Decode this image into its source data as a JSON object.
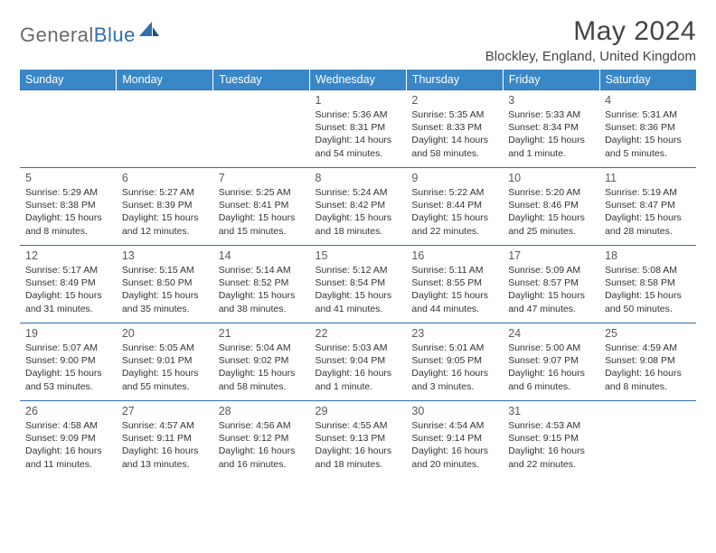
{
  "brand": {
    "part1": "General",
    "part2": "Blue"
  },
  "title": "May 2024",
  "location": "Blockley, England, United Kingdom",
  "colors": {
    "header_bg": "#3a87c8",
    "border": "#2f6fae",
    "text": "#333333",
    "title": "#444444"
  },
  "day_headers": [
    "Sunday",
    "Monday",
    "Tuesday",
    "Wednesday",
    "Thursday",
    "Friday",
    "Saturday"
  ],
  "weeks": [
    [
      null,
      null,
      null,
      {
        "n": "1",
        "sr": "Sunrise: 5:36 AM",
        "ss": "Sunset: 8:31 PM",
        "dl": "Daylight: 14 hours and 54 minutes."
      },
      {
        "n": "2",
        "sr": "Sunrise: 5:35 AM",
        "ss": "Sunset: 8:33 PM",
        "dl": "Daylight: 14 hours and 58 minutes."
      },
      {
        "n": "3",
        "sr": "Sunrise: 5:33 AM",
        "ss": "Sunset: 8:34 PM",
        "dl": "Daylight: 15 hours and 1 minute."
      },
      {
        "n": "4",
        "sr": "Sunrise: 5:31 AM",
        "ss": "Sunset: 8:36 PM",
        "dl": "Daylight: 15 hours and 5 minutes."
      }
    ],
    [
      {
        "n": "5",
        "sr": "Sunrise: 5:29 AM",
        "ss": "Sunset: 8:38 PM",
        "dl": "Daylight: 15 hours and 8 minutes."
      },
      {
        "n": "6",
        "sr": "Sunrise: 5:27 AM",
        "ss": "Sunset: 8:39 PM",
        "dl": "Daylight: 15 hours and 12 minutes."
      },
      {
        "n": "7",
        "sr": "Sunrise: 5:25 AM",
        "ss": "Sunset: 8:41 PM",
        "dl": "Daylight: 15 hours and 15 minutes."
      },
      {
        "n": "8",
        "sr": "Sunrise: 5:24 AM",
        "ss": "Sunset: 8:42 PM",
        "dl": "Daylight: 15 hours and 18 minutes."
      },
      {
        "n": "9",
        "sr": "Sunrise: 5:22 AM",
        "ss": "Sunset: 8:44 PM",
        "dl": "Daylight: 15 hours and 22 minutes."
      },
      {
        "n": "10",
        "sr": "Sunrise: 5:20 AM",
        "ss": "Sunset: 8:46 PM",
        "dl": "Daylight: 15 hours and 25 minutes."
      },
      {
        "n": "11",
        "sr": "Sunrise: 5:19 AM",
        "ss": "Sunset: 8:47 PM",
        "dl": "Daylight: 15 hours and 28 minutes."
      }
    ],
    [
      {
        "n": "12",
        "sr": "Sunrise: 5:17 AM",
        "ss": "Sunset: 8:49 PM",
        "dl": "Daylight: 15 hours and 31 minutes."
      },
      {
        "n": "13",
        "sr": "Sunrise: 5:15 AM",
        "ss": "Sunset: 8:50 PM",
        "dl": "Daylight: 15 hours and 35 minutes."
      },
      {
        "n": "14",
        "sr": "Sunrise: 5:14 AM",
        "ss": "Sunset: 8:52 PM",
        "dl": "Daylight: 15 hours and 38 minutes."
      },
      {
        "n": "15",
        "sr": "Sunrise: 5:12 AM",
        "ss": "Sunset: 8:54 PM",
        "dl": "Daylight: 15 hours and 41 minutes."
      },
      {
        "n": "16",
        "sr": "Sunrise: 5:11 AM",
        "ss": "Sunset: 8:55 PM",
        "dl": "Daylight: 15 hours and 44 minutes."
      },
      {
        "n": "17",
        "sr": "Sunrise: 5:09 AM",
        "ss": "Sunset: 8:57 PM",
        "dl": "Daylight: 15 hours and 47 minutes."
      },
      {
        "n": "18",
        "sr": "Sunrise: 5:08 AM",
        "ss": "Sunset: 8:58 PM",
        "dl": "Daylight: 15 hours and 50 minutes."
      }
    ],
    [
      {
        "n": "19",
        "sr": "Sunrise: 5:07 AM",
        "ss": "Sunset: 9:00 PM",
        "dl": "Daylight: 15 hours and 53 minutes."
      },
      {
        "n": "20",
        "sr": "Sunrise: 5:05 AM",
        "ss": "Sunset: 9:01 PM",
        "dl": "Daylight: 15 hours and 55 minutes."
      },
      {
        "n": "21",
        "sr": "Sunrise: 5:04 AM",
        "ss": "Sunset: 9:02 PM",
        "dl": "Daylight: 15 hours and 58 minutes."
      },
      {
        "n": "22",
        "sr": "Sunrise: 5:03 AM",
        "ss": "Sunset: 9:04 PM",
        "dl": "Daylight: 16 hours and 1 minute."
      },
      {
        "n": "23",
        "sr": "Sunrise: 5:01 AM",
        "ss": "Sunset: 9:05 PM",
        "dl": "Daylight: 16 hours and 3 minutes."
      },
      {
        "n": "24",
        "sr": "Sunrise: 5:00 AM",
        "ss": "Sunset: 9:07 PM",
        "dl": "Daylight: 16 hours and 6 minutes."
      },
      {
        "n": "25",
        "sr": "Sunrise: 4:59 AM",
        "ss": "Sunset: 9:08 PM",
        "dl": "Daylight: 16 hours and 8 minutes."
      }
    ],
    [
      {
        "n": "26",
        "sr": "Sunrise: 4:58 AM",
        "ss": "Sunset: 9:09 PM",
        "dl": "Daylight: 16 hours and 11 minutes."
      },
      {
        "n": "27",
        "sr": "Sunrise: 4:57 AM",
        "ss": "Sunset: 9:11 PM",
        "dl": "Daylight: 16 hours and 13 minutes."
      },
      {
        "n": "28",
        "sr": "Sunrise: 4:56 AM",
        "ss": "Sunset: 9:12 PM",
        "dl": "Daylight: 16 hours and 16 minutes."
      },
      {
        "n": "29",
        "sr": "Sunrise: 4:55 AM",
        "ss": "Sunset: 9:13 PM",
        "dl": "Daylight: 16 hours and 18 minutes."
      },
      {
        "n": "30",
        "sr": "Sunrise: 4:54 AM",
        "ss": "Sunset: 9:14 PM",
        "dl": "Daylight: 16 hours and 20 minutes."
      },
      {
        "n": "31",
        "sr": "Sunrise: 4:53 AM",
        "ss": "Sunset: 9:15 PM",
        "dl": "Daylight: 16 hours and 22 minutes."
      },
      null
    ]
  ]
}
